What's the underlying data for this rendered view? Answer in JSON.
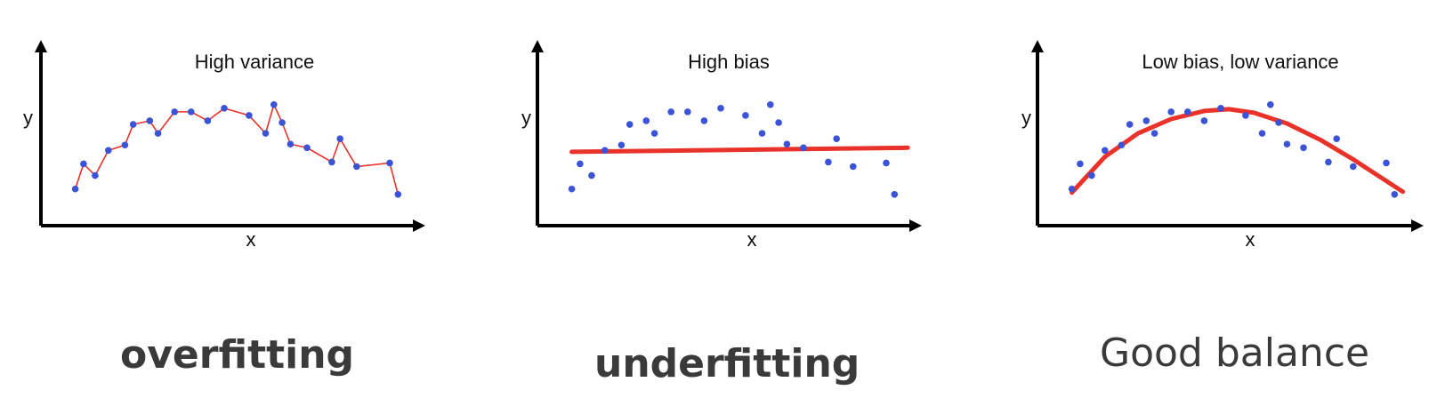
{
  "chart_data": [
    {
      "type": "scatter",
      "title": "High variance",
      "xlabel": "x",
      "ylabel": "y",
      "grid": false,
      "fit": "interpolating-polyline",
      "fit_color": "#e8322a",
      "point_color": "#3b53d6",
      "points": [
        [
          1,
          1.3
        ],
        [
          1.5,
          2.7
        ],
        [
          2.2,
          2.05
        ],
        [
          3,
          3.45
        ],
        [
          4,
          3.75
        ],
        [
          4.5,
          4.9
        ],
        [
          5.5,
          5.1
        ],
        [
          6,
          4.4
        ],
        [
          7,
          5.6
        ],
        [
          8,
          5.6
        ],
        [
          9,
          5.1
        ],
        [
          10,
          5.8
        ],
        [
          11.5,
          5.4
        ],
        [
          12.5,
          4.4
        ],
        [
          13,
          6
        ],
        [
          13.5,
          5
        ],
        [
          14,
          3.8
        ],
        [
          15,
          3.6
        ],
        [
          16.5,
          2.8
        ],
        [
          17,
          4.1
        ],
        [
          18,
          2.55
        ],
        [
          20,
          2.75
        ],
        [
          20.5,
          1
        ]
      ]
    },
    {
      "type": "scatter",
      "title": "High bias",
      "xlabel": "x",
      "ylabel": "y",
      "grid": false,
      "fit": "linear",
      "fit_color": "#e8322a",
      "point_color": "#3b53d6",
      "fit_line": {
        "x": [
          1,
          21.3
        ],
        "y": [
          3.37,
          3.6
        ]
      },
      "points": [
        [
          1,
          1.3
        ],
        [
          1.5,
          2.7
        ],
        [
          2.2,
          2.05
        ],
        [
          3,
          3.45
        ],
        [
          4,
          3.75
        ],
        [
          4.5,
          4.9
        ],
        [
          5.5,
          5.1
        ],
        [
          6,
          4.4
        ],
        [
          7,
          5.6
        ],
        [
          8,
          5.6
        ],
        [
          9,
          5.1
        ],
        [
          10,
          5.8
        ],
        [
          11.5,
          5.4
        ],
        [
          12.5,
          4.4
        ],
        [
          13,
          6
        ],
        [
          13.5,
          5
        ],
        [
          14,
          3.8
        ],
        [
          15,
          3.6
        ],
        [
          16.5,
          2.8
        ],
        [
          17,
          4.1
        ],
        [
          18,
          2.55
        ],
        [
          20,
          2.75
        ],
        [
          20.5,
          1
        ]
      ]
    },
    {
      "type": "scatter",
      "title": "Low bias, low variance",
      "xlabel": "x",
      "ylabel": "y",
      "grid": false,
      "fit": "quadratic",
      "fit_color": "#e8322a",
      "point_color": "#3b53d6",
      "fit_curve": {
        "x": [
          1,
          3,
          5,
          7,
          9,
          10.5,
          12,
          14,
          16,
          18,
          20,
          21
        ],
        "y": [
          1.1,
          3.1,
          4.4,
          5.2,
          5.65,
          5.75,
          5.55,
          4.95,
          4.05,
          2.95,
          1.75,
          1.15
        ]
      },
      "points": [
        [
          1,
          1.3
        ],
        [
          1.5,
          2.7
        ],
        [
          2.2,
          2.05
        ],
        [
          3,
          3.45
        ],
        [
          4,
          3.75
        ],
        [
          4.5,
          4.9
        ],
        [
          5.5,
          5.1
        ],
        [
          6,
          4.4
        ],
        [
          7,
          5.6
        ],
        [
          8,
          5.6
        ],
        [
          9,
          5.1
        ],
        [
          10,
          5.8
        ],
        [
          11.5,
          5.4
        ],
        [
          12.5,
          4.4
        ],
        [
          13,
          6
        ],
        [
          13.5,
          5
        ],
        [
          14,
          3.8
        ],
        [
          15,
          3.6
        ],
        [
          16.5,
          2.8
        ],
        [
          17,
          4.1
        ],
        [
          18,
          2.55
        ],
        [
          20,
          2.75
        ],
        [
          20.5,
          1
        ]
      ]
    }
  ],
  "captions": [
    "overfitting",
    "underfitting",
    "Good balance"
  ]
}
